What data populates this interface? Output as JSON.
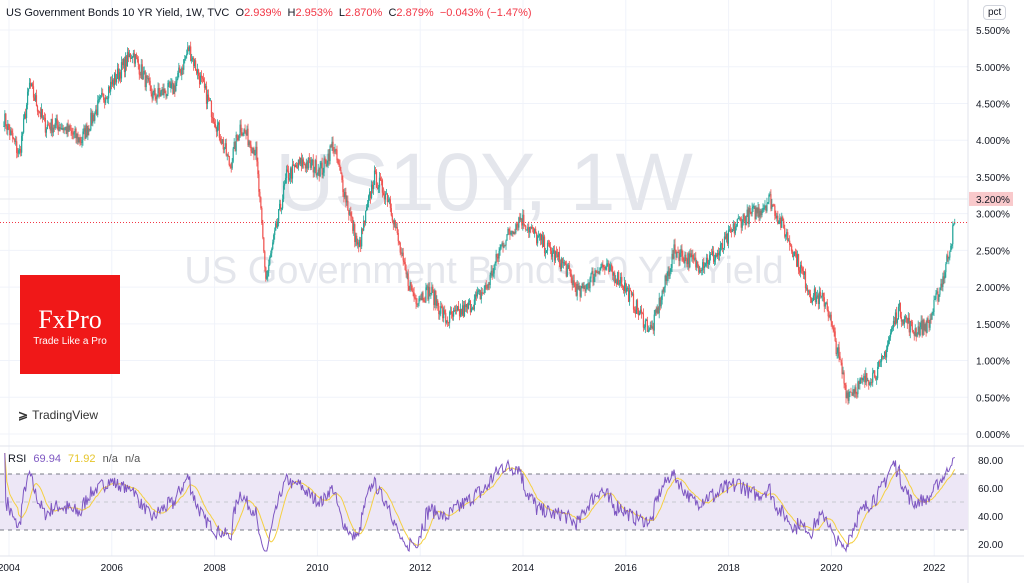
{
  "header": {
    "symbol_title": "US Government Bonds 10 YR Yield, 1W, TVC",
    "open_label": "O",
    "open": "2.939%",
    "high_label": "H",
    "high": "2.953%",
    "low_label": "L",
    "low": "2.870%",
    "close_label": "C",
    "close": "2.879%",
    "change": "−0.043% (−1.47%)"
  },
  "unit_button": "pct",
  "watermark": {
    "line1": "US10Y, 1W",
    "line2": "US Government Bonds 10 YR Yield"
  },
  "logo": {
    "brand": "FxPro",
    "tagline": "Trade Like a Pro"
  },
  "tradingview": "TradingView",
  "price_label": "3.200%",
  "rsi": {
    "label": "RSI",
    "value": "69.94",
    "ma_value": "71.92",
    "na1": "n/a",
    "na2": "n/a"
  },
  "colors": {
    "up": "#26a69a",
    "down": "#ef5350",
    "rsi": "#7e57c2",
    "rsi_ma": "#f5d042",
    "band": "#ede7f6",
    "last": "#f23645"
  },
  "chart_data": [
    {
      "type": "candlestick",
      "xlabel": "",
      "ylabel": "",
      "x_ticks": [
        "2004",
        "2006",
        "2008",
        "2010",
        "2012",
        "2014",
        "2016",
        "2018",
        "2020",
        "2022"
      ],
      "y_ticks": [
        "0.000%",
        "0.500%",
        "1.000%",
        "1.500%",
        "2.000%",
        "2.500%",
        "3.000%",
        "3.500%",
        "4.000%",
        "4.500%",
        "5.000%",
        "5.500%"
      ],
      "ylim": [
        0,
        5.5
      ],
      "last_close": 2.879,
      "highlight_level": 3.2,
      "grid": true,
      "approx_closes": [
        [
          2003.9,
          4.3
        ],
        [
          2004.2,
          3.8
        ],
        [
          2004.4,
          4.75
        ],
        [
          2004.7,
          4.2
        ],
        [
          2005.0,
          4.2
        ],
        [
          2005.4,
          4.0
        ],
        [
          2005.8,
          4.55
        ],
        [
          2006.4,
          5.2
        ],
        [
          2006.8,
          4.6
        ],
        [
          2007.2,
          4.7
        ],
        [
          2007.5,
          5.25
        ],
        [
          2008.0,
          4.3
        ],
        [
          2008.3,
          3.65
        ],
        [
          2008.5,
          4.2
        ],
        [
          2008.8,
          3.85
        ],
        [
          2009.0,
          2.1
        ],
        [
          2009.4,
          3.5
        ],
        [
          2009.7,
          3.7
        ],
        [
          2010.1,
          3.6
        ],
        [
          2010.3,
          3.95
        ],
        [
          2010.8,
          2.5
        ],
        [
          2011.1,
          3.5
        ],
        [
          2011.4,
          3.2
        ],
        [
          2011.7,
          2.2
        ],
        [
          2011.9,
          1.85
        ],
        [
          2012.2,
          1.95
        ],
        [
          2012.5,
          1.55
        ],
        [
          2012.9,
          1.7
        ],
        [
          2013.3,
          2.0
        ],
        [
          2013.6,
          2.6
        ],
        [
          2013.95,
          2.95
        ],
        [
          2014.3,
          2.65
        ],
        [
          2014.8,
          2.3
        ],
        [
          2015.1,
          1.9
        ],
        [
          2015.5,
          2.3
        ],
        [
          2015.9,
          2.1
        ],
        [
          2016.3,
          1.6
        ],
        [
          2016.5,
          1.4
        ],
        [
          2016.95,
          2.5
        ],
        [
          2017.4,
          2.3
        ],
        [
          2017.8,
          2.45
        ],
        [
          2018.2,
          2.9
        ],
        [
          2018.6,
          3.05
        ],
        [
          2018.8,
          3.2
        ],
        [
          2019.2,
          2.6
        ],
        [
          2019.6,
          1.9
        ],
        [
          2019.9,
          1.8
        ],
        [
          2020.3,
          0.55
        ],
        [
          2020.6,
          0.7
        ],
        [
          2020.95,
          0.9
        ],
        [
          2021.3,
          1.7
        ],
        [
          2021.6,
          1.4
        ],
        [
          2021.9,
          1.5
        ],
        [
          2022.2,
          2.2
        ],
        [
          2022.4,
          2.88
        ]
      ]
    },
    {
      "type": "line",
      "name": "RSI",
      "y_ticks": [
        "20.00",
        "40.00",
        "60.00",
        "80.00"
      ],
      "ylim": [
        15,
        85
      ],
      "bands": [
        30,
        50,
        70
      ],
      "last_value": 69.94,
      "last_ma": 71.92
    }
  ]
}
